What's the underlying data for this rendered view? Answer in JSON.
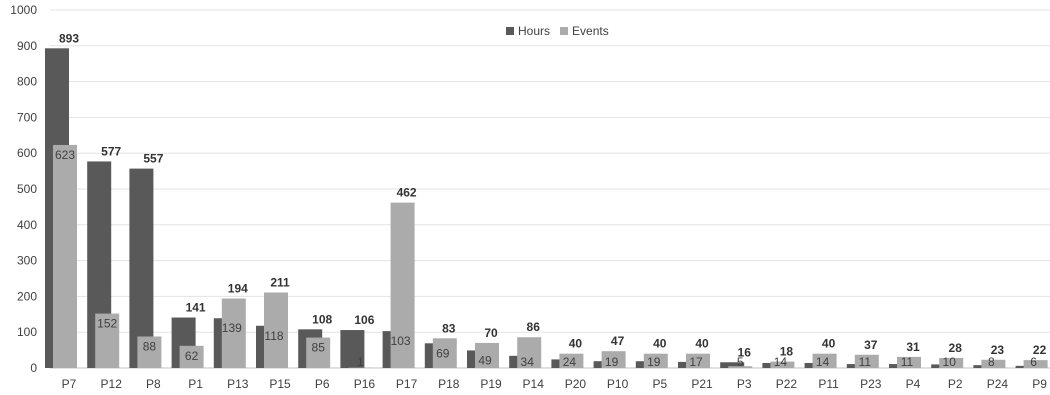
{
  "chart_data": {
    "type": "bar",
    "title": "",
    "xlabel": "",
    "ylabel": "",
    "ylim": [
      0,
      1000
    ],
    "yticks": [
      0,
      100,
      200,
      300,
      400,
      500,
      600,
      700,
      800,
      900,
      1000
    ],
    "grid": true,
    "legend_position": "top",
    "categories": [
      "P7",
      "P12",
      "P8",
      "P1",
      "P13",
      "P15",
      "P6",
      "P16",
      "P17",
      "P18",
      "P19",
      "P14",
      "P20",
      "P10",
      "P5",
      "P21",
      "P3",
      "P22",
      "P11",
      "P23",
      "P4",
      "P2",
      "P24",
      "P9"
    ],
    "series": [
      {
        "name": "Hours",
        "color": "#595959",
        "values": [
          893,
          577,
          557,
          141,
          139,
          118,
          108,
          106,
          103,
          69,
          49,
          34,
          24,
          19,
          19,
          17,
          16,
          14,
          14,
          11,
          11,
          10,
          8,
          6
        ],
        "labels": [
          "893",
          "577",
          "557",
          "141",
          "139",
          "118",
          "108",
          "106",
          "103",
          "69",
          "49",
          "34",
          "24",
          "19",
          "19",
          "17",
          "16",
          "14",
          "14",
          "11",
          "11",
          "10",
          "8",
          "6"
        ]
      },
      {
        "name": "Events",
        "color": "#ababab",
        "values": [
          623,
          152,
          88,
          62,
          194,
          211,
          85,
          1,
          462,
          83,
          70,
          86,
          40,
          47,
          40,
          40,
          5,
          18,
          40,
          37,
          31,
          28,
          23,
          22
        ],
        "labels": [
          "623",
          "152",
          "88",
          "62",
          "194",
          "211",
          "85",
          "1",
          "462",
          "83",
          "70",
          "86",
          "40",
          "47",
          "40",
          "40",
          "5",
          "18",
          "40",
          "37",
          "31",
          "28",
          "23",
          "22"
        ]
      }
    ]
  }
}
